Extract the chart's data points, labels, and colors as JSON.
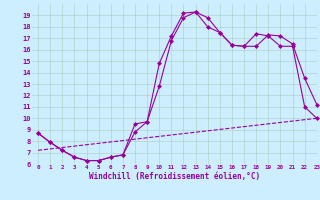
{
  "background_color": "#cceeff",
  "grid_color": "#aaccbb",
  "line_color": "#990099",
  "marker": "D",
  "markersize": 2,
  "linewidth": 0.8,
  "xlim": [
    -0.5,
    23
  ],
  "ylim": [
    6,
    20
  ],
  "yticks": [
    6,
    7,
    8,
    9,
    10,
    11,
    12,
    13,
    14,
    15,
    16,
    17,
    18,
    19
  ],
  "xticks": [
    0,
    1,
    2,
    3,
    4,
    5,
    6,
    7,
    8,
    9,
    10,
    11,
    12,
    13,
    14,
    15,
    16,
    17,
    18,
    19,
    20,
    21,
    22,
    23
  ],
  "xlabel": "Windchill (Refroidissement éolien,°C)",
  "line1_x": [
    0,
    1,
    2,
    3,
    4,
    5,
    6,
    7,
    8,
    9,
    10,
    11,
    12,
    13,
    14,
    15,
    16,
    17,
    18,
    19,
    20,
    21,
    22,
    23
  ],
  "line1_y": [
    8.7,
    7.9,
    7.2,
    6.6,
    6.3,
    6.3,
    6.6,
    6.8,
    9.5,
    9.7,
    14.8,
    17.2,
    19.2,
    19.3,
    18.8,
    17.5,
    16.4,
    16.3,
    16.3,
    17.3,
    17.2,
    16.5,
    13.5,
    11.2
  ],
  "line2_x": [
    0,
    1,
    2,
    3,
    4,
    5,
    6,
    7,
    8,
    9,
    10,
    11,
    12,
    13,
    14,
    15,
    16,
    17,
    18,
    19,
    20,
    21,
    22,
    23
  ],
  "line2_y": [
    8.7,
    7.9,
    7.2,
    6.6,
    6.3,
    6.3,
    6.6,
    6.8,
    8.8,
    9.7,
    12.8,
    16.8,
    18.8,
    19.3,
    18.0,
    17.5,
    16.4,
    16.3,
    17.4,
    17.2,
    16.3,
    16.3,
    11.0,
    10.0
  ],
  "line3_x": [
    0,
    23
  ],
  "line3_y": [
    7.2,
    10.0
  ]
}
